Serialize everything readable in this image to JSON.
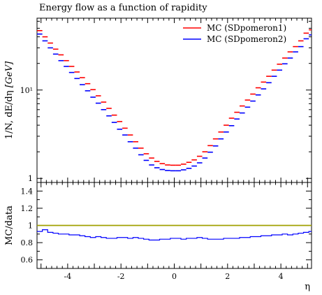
{
  "title": "Energy flow as a function of rapidity",
  "chart_data": [
    {
      "type": "line",
      "panel": "main",
      "title": "Energy flow as a function of rapidity",
      "ylabel": "1/N dE/dη [GeV]",
      "ylabel_parts": {
        "main": "1/N, dE/dη",
        "unit": "[GeV]"
      },
      "y_scale": "log",
      "ylim": [
        0.9,
        65
      ],
      "xlim": [
        -5.15,
        5.15
      ],
      "yticks": [
        {
          "value": 1,
          "label": "1"
        },
        {
          "value": 10,
          "label": "10¹"
        }
      ],
      "legend_position": "top-right",
      "bin_edges": [
        -5.15,
        -4.95,
        -4.75,
        -4.55,
        -4.35,
        -4.15,
        -3.95,
        -3.75,
        -3.55,
        -3.35,
        -3.15,
        -2.95,
        -2.75,
        -2.55,
        -2.35,
        -2.15,
        -1.95,
        -1.75,
        -1.55,
        -1.35,
        -1.15,
        -0.95,
        -0.75,
        -0.55,
        -0.35,
        -0.15,
        0.05,
        0.25,
        0.45,
        0.65,
        0.85,
        1.05,
        1.25,
        1.45,
        1.65,
        1.85,
        2.05,
        2.25,
        2.45,
        2.65,
        2.85,
        3.05,
        3.25,
        3.45,
        3.65,
        3.85,
        4.05,
        4.25,
        4.45,
        4.65,
        4.85,
        5.05,
        5.15
      ],
      "series": [
        {
          "name": "MC (SDpomeron1)",
          "color": "#ff0000",
          "values": [
            47,
            40,
            34,
            29,
            25,
            21.5,
            18.5,
            16,
            13.8,
            11.8,
            10.1,
            8.6,
            7.3,
            6.2,
            5.2,
            4.4,
            3.7,
            3.1,
            2.6,
            2.2,
            1.9,
            1.7,
            1.56,
            1.47,
            1.42,
            1.41,
            1.41,
            1.45,
            1.52,
            1.62,
            1.78,
            2.0,
            2.35,
            2.8,
            3.35,
            4.0,
            4.8,
            5.6,
            6.6,
            7.7,
            9.0,
            10.6,
            12.3,
            14.3,
            16.8,
            19.6,
            23,
            27,
            31,
            36,
            44,
            48
          ]
        },
        {
          "name": "MC (SDpomeron2)",
          "color": "#0000ff",
          "values": [
            43,
            36,
            30,
            25.5,
            21.5,
            18.5,
            15.8,
            13.5,
            11.5,
            9.8,
            8.3,
            7.1,
            6.0,
            5.1,
            4.3,
            3.6,
            3.1,
            2.6,
            2.2,
            1.85,
            1.6,
            1.42,
            1.32,
            1.26,
            1.23,
            1.22,
            1.22,
            1.25,
            1.3,
            1.38,
            1.5,
            1.7,
            1.98,
            2.33,
            2.8,
            3.35,
            3.95,
            4.7,
            5.5,
            6.4,
            7.5,
            8.8,
            10.3,
            12.1,
            14.3,
            16.8,
            19.8,
            23,
            27,
            31,
            38,
            42
          ]
        }
      ]
    },
    {
      "type": "line",
      "panel": "ratio",
      "xlabel": "η",
      "ylabel": "MC/data",
      "ylim": [
        0.5,
        1.5
      ],
      "xlim": [
        -5.15,
        5.15
      ],
      "xticks": [
        {
          "value": -4,
          "label": "-4"
        },
        {
          "value": -2,
          "label": "-2"
        },
        {
          "value": 0,
          "label": "0"
        },
        {
          "value": 2,
          "label": "2"
        },
        {
          "value": 4,
          "label": "4"
        }
      ],
      "yticks": [
        {
          "value": 0.6,
          "label": "0.6"
        },
        {
          "value": 0.8,
          "label": "0.8"
        },
        {
          "value": 1.0,
          "label": "1"
        },
        {
          "value": 1.2,
          "label": "1.2"
        },
        {
          "value": 1.4,
          "label": "1.4"
        }
      ],
      "reference": {
        "value": 1.0,
        "color": "#a0a000"
      },
      "series": [
        {
          "name": "MC (SDpomeron1)",
          "color": "#ff0000",
          "values": [
            1.0,
            1.0,
            1.0,
            1.0,
            1.0,
            1.0,
            1.0,
            1.0,
            1.0,
            1.0,
            1.0,
            1.0,
            1.0,
            1.0,
            1.0,
            1.0,
            1.0,
            1.0,
            1.0,
            1.0,
            1.0,
            1.0,
            1.0,
            1.0,
            1.0,
            1.0,
            1.0,
            1.0,
            1.0,
            1.0,
            1.0,
            1.0,
            1.0,
            1.0,
            1.0,
            1.0,
            1.0,
            1.0,
            1.0,
            1.0,
            1.0,
            1.0,
            1.0,
            1.0,
            1.0,
            1.0,
            1.0,
            1.0,
            1.0,
            1.0,
            1.0,
            1.0
          ]
        },
        {
          "name": "MC (SDpomeron2)",
          "color": "#0000ff",
          "values": [
            0.93,
            0.95,
            0.92,
            0.91,
            0.9,
            0.9,
            0.89,
            0.89,
            0.88,
            0.87,
            0.86,
            0.87,
            0.86,
            0.85,
            0.85,
            0.86,
            0.86,
            0.85,
            0.86,
            0.85,
            0.84,
            0.83,
            0.83,
            0.84,
            0.84,
            0.85,
            0.85,
            0.84,
            0.85,
            0.85,
            0.86,
            0.85,
            0.84,
            0.84,
            0.84,
            0.85,
            0.85,
            0.85,
            0.86,
            0.86,
            0.87,
            0.87,
            0.88,
            0.88,
            0.89,
            0.89,
            0.9,
            0.89,
            0.9,
            0.91,
            0.92,
            0.93
          ]
        }
      ]
    }
  ]
}
